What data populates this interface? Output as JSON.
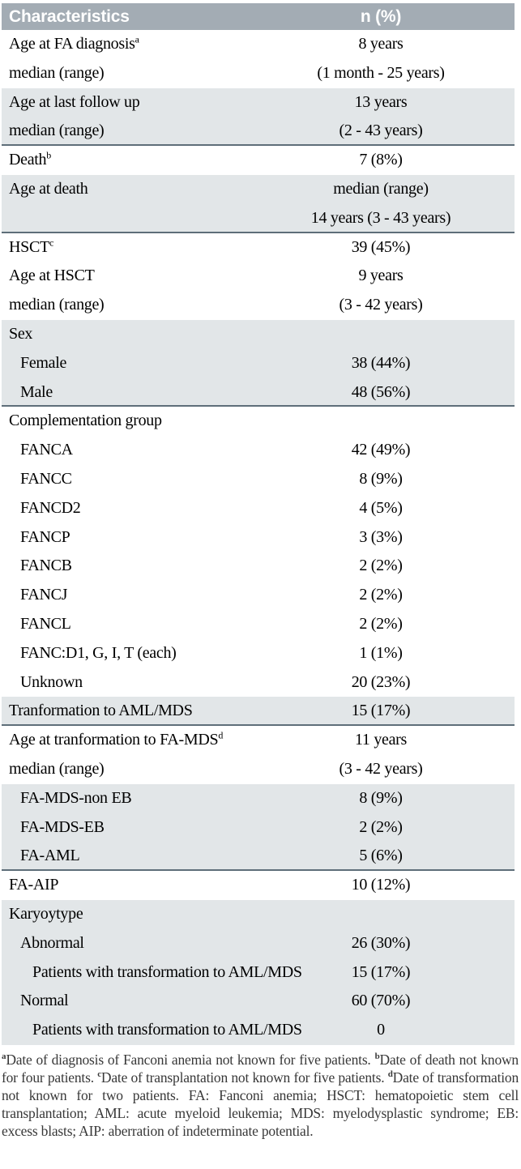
{
  "colors": {
    "header_bg": "#a3acb4",
    "header_fg": "#ffffff",
    "shade_bg": "#e2e6e8",
    "separator": "#5e6e79"
  },
  "table": {
    "header": {
      "characteristics": "Characteristics",
      "n_percent": "n (%)"
    },
    "rows": [
      {
        "label": "Age at FA diagnosis",
        "sup": "a",
        "indent": 0,
        "value": "8 years",
        "shade": false,
        "sep": false
      },
      {
        "label": "median (range)",
        "indent": 0,
        "value": "(1 month - 25 years)",
        "shade": false,
        "sep": false
      },
      {
        "label": "Age at last follow up",
        "indent": 0,
        "value": "13 years",
        "shade": true,
        "sep": false
      },
      {
        "label": "median (range)",
        "indent": 0,
        "value": "(2 - 43 years)",
        "shade": true,
        "sep": true
      },
      {
        "label": "Death",
        "sup": "b",
        "indent": 0,
        "value": "7 (8%)",
        "shade": false,
        "sep": false
      },
      {
        "label": "Age at death",
        "indent": 0,
        "value": "median (range)",
        "shade": true,
        "sep": false
      },
      {
        "label": "",
        "indent": 0,
        "value": "14 years (3 - 43 years)",
        "shade": true,
        "sep": true
      },
      {
        "label": "HSCT",
        "sup": "c",
        "indent": 0,
        "value": "39 (45%)",
        "shade": false,
        "sep": false
      },
      {
        "label": "Age at HSCT",
        "indent": 0,
        "value": "9 years",
        "shade": false,
        "sep": false
      },
      {
        "label": "median (range)",
        "indent": 0,
        "value": "(3 - 42 years)",
        "shade": false,
        "sep": false
      },
      {
        "label": "Sex",
        "indent": 0,
        "value": "",
        "shade": true,
        "sep": false
      },
      {
        "label": "Female",
        "indent": 1,
        "value": "38 (44%)",
        "shade": true,
        "sep": false
      },
      {
        "label": "Male",
        "indent": 1,
        "value": "48 (56%)",
        "shade": true,
        "sep": true
      },
      {
        "label": "Complementation group",
        "indent": 0,
        "value": "",
        "shade": false,
        "sep": false
      },
      {
        "label": "FANCA",
        "indent": 1,
        "value": "42 (49%)",
        "shade": false,
        "sep": false
      },
      {
        "label": "FANCC",
        "indent": 1,
        "value": "8 (9%)",
        "shade": false,
        "sep": false
      },
      {
        "label": "FANCD2",
        "indent": 1,
        "value": "4 (5%)",
        "shade": false,
        "sep": false
      },
      {
        "label": "FANCP",
        "indent": 1,
        "value": "3 (3%)",
        "shade": false,
        "sep": false
      },
      {
        "label": "FANCB",
        "indent": 1,
        "value": "2 (2%)",
        "shade": false,
        "sep": false
      },
      {
        "label": "FANCJ",
        "indent": 1,
        "value": "2 (2%)",
        "shade": false,
        "sep": false
      },
      {
        "label": "FANCL",
        "indent": 1,
        "value": "2 (2%)",
        "shade": false,
        "sep": false
      },
      {
        "label": "FANC:D1, G, I, T (each)",
        "indent": 1,
        "value": "1 (1%)",
        "shade": false,
        "sep": false
      },
      {
        "label": "Unknown",
        "indent": 1,
        "value": "20 (23%)",
        "shade": false,
        "sep": false
      },
      {
        "label": "Tranformation to AML/MDS",
        "indent": 0,
        "value": "15 (17%)",
        "shade": true,
        "sep": true
      },
      {
        "label": "Age at tranformation to FA-MDS",
        "sup": "d",
        "indent": 0,
        "value": "11 years",
        "shade": false,
        "sep": false
      },
      {
        "label": "median (range)",
        "indent": 0,
        "value": "(3 - 42 years)",
        "shade": false,
        "sep": false
      },
      {
        "label": "FA-MDS-non EB",
        "indent": 1,
        "value": "8 (9%)",
        "shade": true,
        "sep": false
      },
      {
        "label": "FA-MDS-EB",
        "indent": 1,
        "value": "2 (2%)",
        "shade": true,
        "sep": false
      },
      {
        "label": "FA-AML",
        "indent": 1,
        "value": "5 (6%)",
        "shade": true,
        "sep": true
      },
      {
        "label": "FA-AIP",
        "indent": 0,
        "value": "10 (12%)",
        "shade": false,
        "sep": false
      },
      {
        "label": "Karyoytype",
        "indent": 0,
        "value": "",
        "shade": true,
        "sep": false
      },
      {
        "label": "Abnormal",
        "indent": 1,
        "value": "26 (30%)",
        "shade": true,
        "sep": false
      },
      {
        "label": "Patients with transformation to AML/MDS",
        "indent": 2,
        "value": "15 (17%)",
        "shade": true,
        "sep": false
      },
      {
        "label": "Normal",
        "indent": 1,
        "value": "60 (70%)",
        "shade": true,
        "sep": false
      },
      {
        "label": "Patients with transformation to AML/MDS",
        "indent": 2,
        "value": "0",
        "shade": true,
        "sep": false
      }
    ]
  },
  "footnote": {
    "segments": [
      {
        "sup": "a",
        "text": "Date of diagnosis of Fanconi anemia not known for five patients. "
      },
      {
        "sup": "b",
        "text": "Date of death not known for four patients. "
      },
      {
        "sup": "c",
        "text": "Date of transplantation not known for five patients. "
      },
      {
        "sup": "d",
        "text": "Date of transformation not known for two patients. FA: Fanconi anemia; HSCT: hematopoietic stem cell transplantation; AML: acute myeloid leukemia; MDS: myelodysplastic syndrome; EB: excess blasts; AIP: aberration of indeterminate potential."
      }
    ]
  }
}
